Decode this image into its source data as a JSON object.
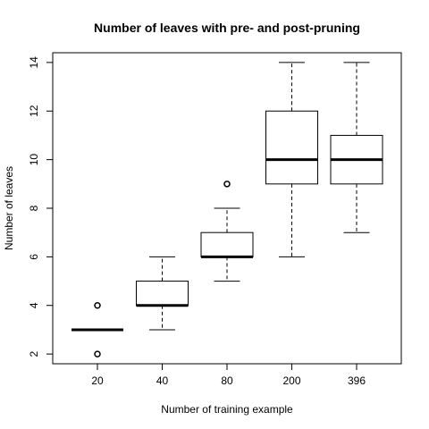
{
  "chart_data": {
    "type": "boxplot",
    "title": "Number of leaves with pre- and post-pruning",
    "xlabel": "Number of training example",
    "ylabel": "Number of leaves",
    "categories": [
      "20",
      "40",
      "80",
      "200",
      "396"
    ],
    "ylim": [
      1.6,
      14.4
    ],
    "yticks": [
      2,
      4,
      6,
      8,
      10,
      12,
      14
    ],
    "grid": false,
    "legend": "none",
    "boxes": [
      {
        "category": "20",
        "whisker_low": 3,
        "q1": 3,
        "median": 3,
        "q3": 3,
        "whisker_high": 3,
        "outliers": [
          2,
          4
        ]
      },
      {
        "category": "40",
        "whisker_low": 3,
        "q1": 4,
        "median": 4,
        "q3": 5,
        "whisker_high": 6,
        "outliers": []
      },
      {
        "category": "80",
        "whisker_low": 5,
        "q1": 6,
        "median": 6,
        "q3": 7,
        "whisker_high": 8,
        "outliers": [
          9
        ]
      },
      {
        "category": "200",
        "whisker_low": 6,
        "q1": 9,
        "median": 10,
        "q3": 12,
        "whisker_high": 14,
        "outliers": []
      },
      {
        "category": "396",
        "whisker_low": 7,
        "q1": 9,
        "median": 10,
        "q3": 11,
        "whisker_high": 14,
        "outliers": []
      }
    ]
  }
}
